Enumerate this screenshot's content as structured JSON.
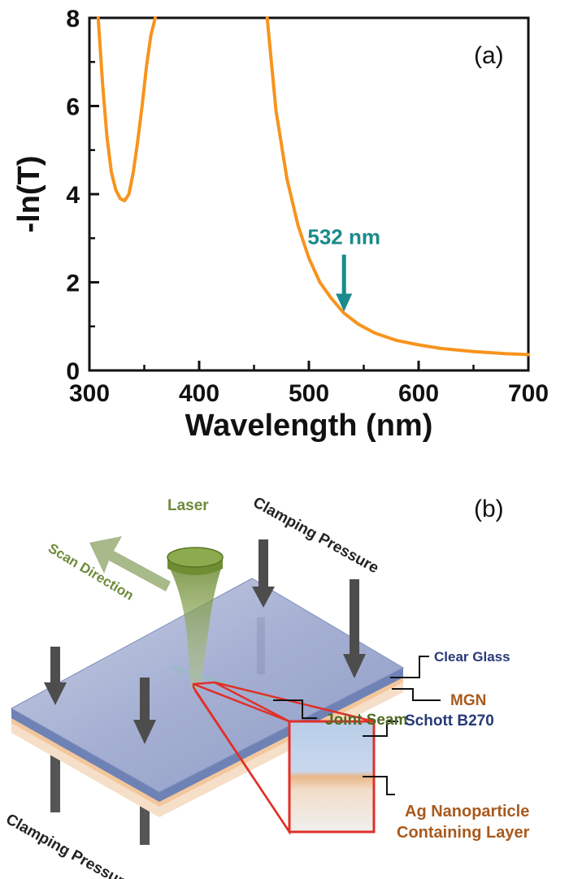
{
  "chart_data": {
    "type": "line",
    "panel_label": "(a)",
    "xlabel": "Wavelength (nm)",
    "ylabel": "-ln(T)",
    "xlim": [
      300,
      700
    ],
    "ylim": [
      0,
      8
    ],
    "xticks": [
      "300",
      "400",
      "500",
      "600",
      "700"
    ],
    "yticks": [
      "0",
      "2",
      "4",
      "6",
      "8"
    ],
    "grid": false,
    "line_color": "#f7941d",
    "series": [
      {
        "x": [
          308,
          312,
          316,
          320,
          324,
          328,
          332,
          336,
          340,
          344,
          348,
          352,
          356,
          360,
          364,
          462,
          470,
          480,
          490,
          500,
          510,
          520,
          532,
          545,
          560,
          580,
          600,
          620,
          650,
          680,
          700
        ],
        "y": [
          8.0,
          6.5,
          5.3,
          4.5,
          4.1,
          3.9,
          3.85,
          4.0,
          4.5,
          5.2,
          6.0,
          6.9,
          7.6,
          8.0,
          null,
          8.0,
          5.9,
          4.35,
          3.3,
          2.55,
          2.0,
          1.65,
          1.3,
          1.05,
          0.85,
          0.68,
          0.58,
          0.5,
          0.43,
          0.38,
          0.36
        ]
      }
    ],
    "annotation": {
      "text": "532 nm",
      "x": 532,
      "y": 1.3,
      "color": "#1a8a8a"
    }
  },
  "diagram": {
    "panel_label": "(b)",
    "labels": {
      "laser": "Laser",
      "scan_direction": "Scan Direction",
      "clamping_top": "Clamping Pressure",
      "clamping_bottom": "Clamping Pressure",
      "clear_glass": "Clear Glass",
      "mgn": "MGN",
      "joint_seam": "Joint Seam",
      "schott": "Schott B270",
      "ag_line1": "Ag Nanoparticle",
      "ag_line2": "Containing Layer"
    },
    "colors": {
      "laser_green": "#6e8a3a",
      "arrow_gray": "#4d4d4d",
      "glass_blue": "#9aa7cc",
      "mgn_orange": "#e8b37e",
      "inset_red": "#e0302a",
      "navy_text": "#283a78",
      "brown_text": "#a85a1e"
    }
  }
}
